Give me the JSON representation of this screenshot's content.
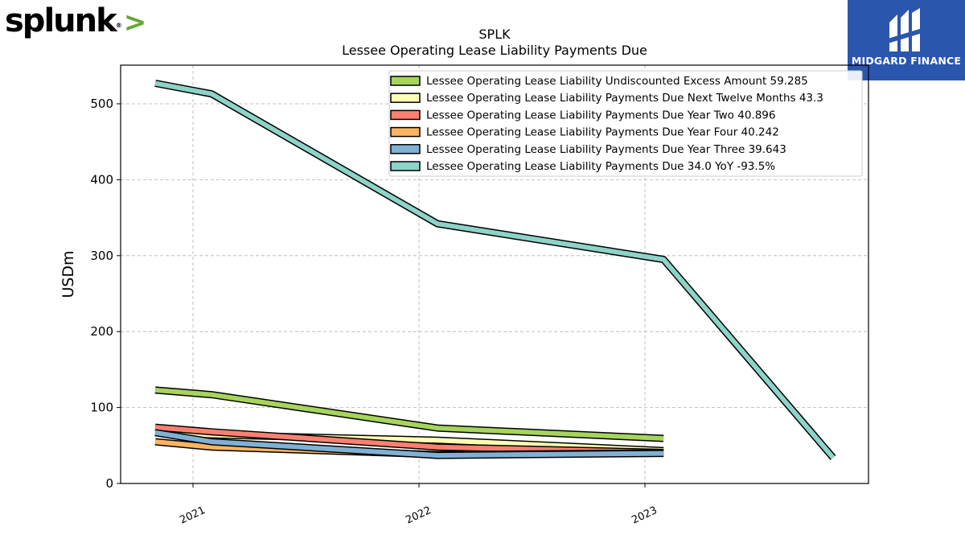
{
  "brand": {
    "left_logo": "splunk",
    "left_logo_accent": ">",
    "right_logo": "MIDGARD FINANCE",
    "accent": "#65a637",
    "right_bg": "#2b56ae"
  },
  "chart_data": {
    "type": "line",
    "title": "SPLK",
    "subtitle": "Lessee Operating Lease Liability Payments Due",
    "xlabel": "",
    "ylabel": "USDm",
    "ylim": [
      0,
      550
    ],
    "yticks": [
      0,
      100,
      200,
      300,
      400,
      500
    ],
    "xticks": [
      "2021",
      "2022",
      "2023"
    ],
    "grid": true,
    "legend_position": "top-right",
    "series": [
      {
        "name": "Lessee Operating Lease Liability Undiscounted Excess Amount  59.285",
        "color": "#a6d45c",
        "points": [
          [
            "2020-11-01",
            123
          ],
          [
            "2021-01-31",
            117
          ],
          [
            "2022-01-31",
            73
          ],
          [
            "2023-01-31",
            59.3
          ]
        ]
      },
      {
        "name": "Lessee Operating Lease Liability Payments Due Next Twelve Months  43.3",
        "color": "#ffffb3",
        "points": [
          [
            "2020-11-01",
            68
          ],
          [
            "2021-01-31",
            64
          ],
          [
            "2022-01-31",
            57
          ],
          [
            "2023-01-31",
            43.3
          ]
        ]
      },
      {
        "name": "Lessee Operating Lease Liability Payments Due Year Two  40.896",
        "color": "#fb8072",
        "points": [
          [
            "2020-11-01",
            74
          ],
          [
            "2021-01-31",
            68
          ],
          [
            "2022-01-31",
            48
          ],
          [
            "2023-01-31",
            40.9
          ]
        ]
      },
      {
        "name": "Lessee Operating Lease Liability Payments Due Year Four  40.242",
        "color": "#fdb462",
        "points": [
          [
            "2020-11-01",
            55
          ],
          [
            "2021-01-31",
            48
          ],
          [
            "2022-01-31",
            38
          ],
          [
            "2023-01-31",
            40.2
          ]
        ]
      },
      {
        "name": "Lessee Operating Lease Liability Payments Due Year Three  39.643",
        "color": "#80b1d3",
        "points": [
          [
            "2020-11-01",
            67
          ],
          [
            "2021-01-31",
            55
          ],
          [
            "2022-01-31",
            37
          ],
          [
            "2023-01-31",
            39.6
          ]
        ]
      },
      {
        "name": "Lessee Operating Lease Liability Payments Due  34.0 YoY -93.5%",
        "color": "#8dd3c7",
        "points": [
          [
            "2020-11-01",
            527
          ],
          [
            "2021-01-31",
            513
          ],
          [
            "2022-01-31",
            342
          ],
          [
            "2023-01-31",
            295
          ],
          [
            "2023-11-01",
            34
          ]
        ]
      }
    ]
  }
}
